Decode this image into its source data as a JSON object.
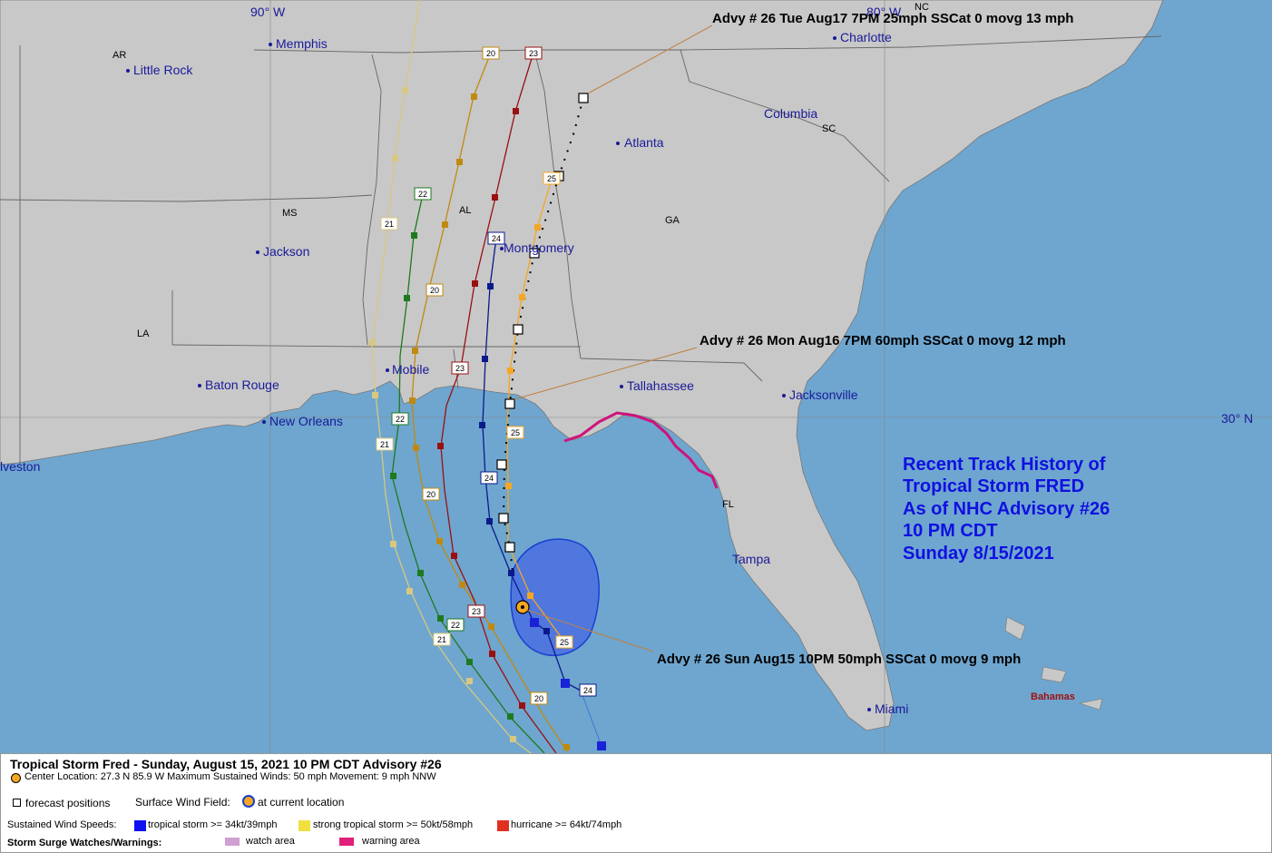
{
  "map": {
    "meridian_labels": [
      "90° W",
      "80° W"
    ],
    "parallel_labels": [
      "30° N"
    ],
    "state_labels": [
      "AR",
      "MS",
      "AL",
      "GA",
      "SC",
      "NC",
      "LA",
      "FL"
    ],
    "cities": [
      "Memphis",
      "Little Rock",
      "Charlotte",
      "Columbia",
      "Atlanta",
      "Jackson",
      "Montgomery",
      "Mobile",
      "Baton Rouge",
      "New Orleans",
      "Tallahassee",
      "Jacksonville",
      "Tampa",
      "Miami",
      "lveston"
    ],
    "region_labels": [
      "Bahamas"
    ],
    "advisories": [
      "Advy # 26 Tue Aug17 7PM  25mph SSCat 0 movg 13 mph",
      "Advy # 26 Mon Aug16 7PM  60mph SSCat 0 movg 12 mph",
      "Advy # 26 Sun Aug15 10PM  50mph SSCat 0 movg 9 mph"
    ],
    "title_block": [
      "Recent Track History of",
      "Tropical Storm FRED",
      "As of NHC Advisory #26",
      "10 PM CDT",
      "Sunday 8/15/2021"
    ],
    "track_labels": {
      "t20": "20",
      "t21": "21",
      "t22": "22",
      "t23": "23",
      "t24": "24",
      "t25": "25"
    },
    "colors": {
      "ocean": "#6ea6cf",
      "land": "#c8c8c8",
      "wind_field": "#4a6fe0",
      "track_20": "#c08a10",
      "track_21": "#d8c880",
      "track_22": "#1e7a1e",
      "track_23": "#9a1010",
      "track_24": "#0a1a8a",
      "track_25": "#f5a623",
      "warning": "#d0127a",
      "title_text": "#1010e0"
    }
  },
  "legend": {
    "title": "Tropical Storm Fred  -  Sunday, August 15, 2021  10 PM CDT   Advisory #26",
    "center": "Center Location: 27.3 N   85.9 W   Maximum Sustained Winds: 50 mph   Movement: 9 mph NNW",
    "forecast_positions": "forecast positions",
    "surface_wind_field": "Surface Wind Field:",
    "current_location": "at current location",
    "sustained_label": "Sustained Wind Speeds:",
    "ts": "tropical storm >= 34kt/39mph",
    "sts": "strong tropical storm >= 50kt/58mph",
    "hu": "hurricane >= 64kt/74mph",
    "surge_label": "Storm Surge Watches/Warnings:",
    "watch": "watch area",
    "warning": "warning area",
    "colors": {
      "ts": "#1010f0",
      "sts": "#f0e040",
      "hu": "#e03020",
      "watch": "#d0a0d0",
      "warning": "#e0207a"
    }
  }
}
